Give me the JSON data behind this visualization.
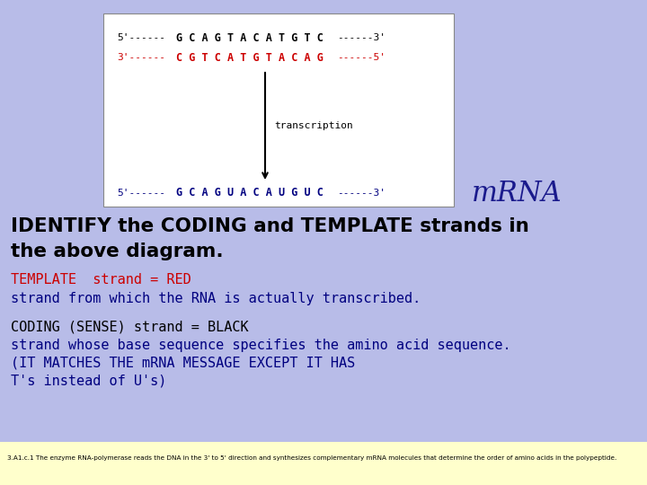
{
  "bg_color": "#b8bce8",
  "box_bg": "#ffffff",
  "strand1_text": "5'------  G C A G T A C A T G T C ------ 3'",
  "strand1_color": "#000000",
  "strand2_text": "3'------  C G T C A T G T A C A G ------ 5'",
  "strand2_color": "#cc0000",
  "transcription_label": "transcription",
  "mrna_text": "5'------  G C A G U A C A U G U C ------ 3'",
  "mrna_color": "#000080",
  "mrna_tag": "mRNA",
  "mrna_tag_color": "#1a1a8c",
  "title_line1": "IDENTIFY the CODING and TEMPLATE strands in",
  "title_line2": "the above diagram.",
  "title_color": "#000000",
  "template_line1": "TEMPLATE  strand = RED",
  "template_color1": "#cc0000",
  "template_line2": "strand from which the RNA is actually transcribed.",
  "template_color2": "#000080",
  "coding_line1": "CODING (SENSE) strand = BLACK",
  "coding_color1": "#000000",
  "coding_line2": "strand whose base sequence specifies the amino acid sequence.",
  "coding_line3": "(IT MATCHES THE mRNA MESSAGE EXCEPT IT HAS",
  "coding_line4": "T's instead of U's)",
  "coding_color2": "#000080",
  "footnote": "3.A1.c.1 The enzyme RNA-polymerase reads the DNA in the 3' to 5' direction and synthesizes complementary mRNA molecules that determine the order of amino acids in the polypeptide.",
  "footnote_bg": "#ffffcc",
  "footnote_color": "#000000"
}
